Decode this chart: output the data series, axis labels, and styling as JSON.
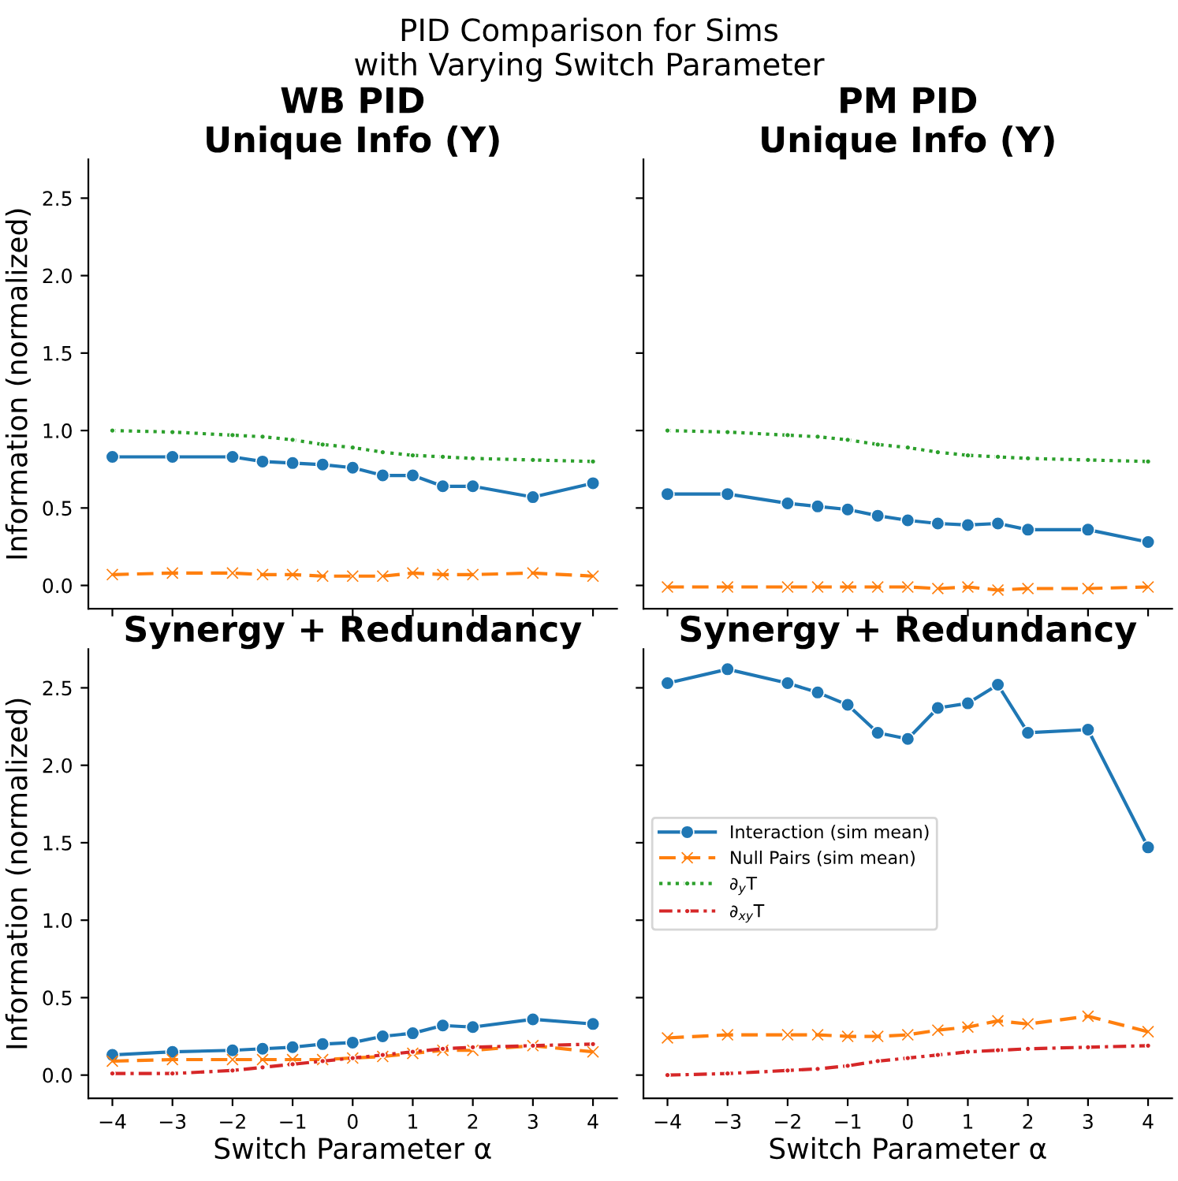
{
  "chart_data": [
    {
      "type": "line",
      "title": "WB PID\nUnique Info (Y)",
      "annotations": [
        "PID Comparison for Sims\nwith Varying Switch Parameter"
      ],
      "ylabel": "Information (normalized)",
      "x": [
        -4,
        -3,
        -2,
        -1.5,
        -1,
        -0.5,
        0,
        0.5,
        1,
        1.5,
        2,
        3,
        4
      ],
      "xlim": [
        -4.4,
        4.4
      ],
      "xticks": [
        -4,
        -3,
        -2,
        -1,
        0,
        1,
        2,
        3,
        4
      ],
      "ylim": [
        -0.15,
        2.75
      ],
      "yticks": [
        {
          "value": 0,
          "label": "0.0"
        },
        0.5,
        {
          "value": 1,
          "label": "1.0"
        },
        1.5,
        {
          "value": 2,
          "label": "2.0"
        },
        2.5
      ],
      "tick_labels": "y",
      "grid": false,
      "legend": false,
      "series": [
        {
          "color": "#1f77b4",
          "marker": "circle",
          "line_style": "solid",
          "values": [
            0.83,
            0.83,
            0.83,
            0.8,
            0.79,
            0.78,
            0.76,
            0.71,
            0.71,
            0.64,
            0.64,
            0.57,
            0.66
          ]
        },
        {
          "color": "#ff7f0e",
          "marker": "cross",
          "line_style": "dashed",
          "values": [
            0.07,
            0.08,
            0.08,
            0.07,
            0.07,
            0.06,
            0.06,
            0.06,
            0.08,
            0.07,
            0.07,
            0.08,
            0.06
          ]
        },
        {
          "color": "#2ca02c",
          "marker": "circle",
          "line_style": "dotted",
          "values": [
            1.0,
            0.99,
            0.97,
            0.96,
            0.94,
            0.91,
            0.89,
            0.86,
            0.84,
            0.83,
            0.82,
            0.81,
            0.8
          ]
        }
      ]
    },
    {
      "type": "line",
      "title": "PM PID\nUnique Info (Y)",
      "x": [
        -4,
        -3,
        -2,
        -1.5,
        -1,
        -0.5,
        0,
        0.5,
        1,
        1.5,
        2,
        3,
        4
      ],
      "xlim": [
        -4.4,
        4.4
      ],
      "xticks": [
        -4,
        -3,
        -2,
        -1,
        0,
        1,
        2,
        3,
        4
      ],
      "ylim": [
        -0.15,
        2.75
      ],
      "yticks": [
        0,
        0.5,
        1,
        1.5,
        2,
        2.5
      ],
      "tick_labels": false,
      "grid": false,
      "legend": false,
      "series": [
        {
          "color": "#1f77b4",
          "marker": "circle",
          "line_style": "solid",
          "values": [
            0.59,
            0.59,
            0.53,
            0.51,
            0.49,
            0.45,
            0.42,
            0.4,
            0.39,
            0.4,
            0.36,
            0.36,
            0.28
          ]
        },
        {
          "color": "#ff7f0e",
          "marker": "cross",
          "line_style": "dashed",
          "values": [
            -0.01,
            -0.01,
            -0.01,
            -0.01,
            -0.01,
            -0.01,
            -0.01,
            -0.02,
            -0.01,
            -0.03,
            -0.02,
            -0.02,
            -0.01
          ]
        },
        {
          "color": "#2ca02c",
          "marker": "circle",
          "line_style": "dotted",
          "values": [
            1.0,
            0.99,
            0.97,
            0.96,
            0.94,
            0.91,
            0.89,
            0.86,
            0.84,
            0.83,
            0.82,
            0.81,
            0.8
          ]
        }
      ]
    },
    {
      "type": "line",
      "title": "Synergy + Redundancy",
      "xlabel": "Switch Parameter α",
      "ylabel": "Information (normalized)",
      "x": [
        -4,
        -3,
        -2,
        -1.5,
        -1,
        -0.5,
        0,
        0.5,
        1,
        1.5,
        2,
        3,
        4
      ],
      "xlim": [
        -4.4,
        4.4
      ],
      "xticks": [
        {
          "value": -4,
          "label": "−4"
        },
        {
          "value": -3,
          "label": "−3"
        },
        {
          "value": -2,
          "label": "−2"
        },
        {
          "value": -1,
          "label": "−1"
        },
        0,
        1,
        2,
        3,
        4
      ],
      "ylim": [
        -0.15,
        2.75
      ],
      "yticks": [
        {
          "value": 0,
          "label": "0.0"
        },
        0.5,
        {
          "value": 1,
          "label": "1.0"
        },
        1.5,
        {
          "value": 2,
          "label": "2.0"
        },
        2.5
      ],
      "grid": false,
      "legend": false,
      "series": [
        {
          "color": "#1f77b4",
          "marker": "circle",
          "line_style": "solid",
          "values": [
            0.13,
            0.15,
            0.16,
            0.17,
            0.18,
            0.2,
            0.21,
            0.25,
            0.27,
            0.32,
            0.31,
            0.36,
            0.33
          ]
        },
        {
          "color": "#ff7f0e",
          "marker": "cross",
          "line_style": "dashed",
          "values": [
            0.09,
            0.1,
            0.1,
            0.1,
            0.1,
            0.1,
            0.11,
            0.12,
            0.14,
            0.16,
            0.16,
            0.19,
            0.15
          ]
        },
        {
          "color": "#d62728",
          "marker": "circle",
          "line_style": "dashdot",
          "values": [
            0.01,
            0.01,
            0.03,
            0.05,
            0.07,
            0.09,
            0.11,
            0.13,
            0.15,
            0.17,
            0.18,
            0.19,
            0.2
          ]
        }
      ]
    },
    {
      "type": "line",
      "title": "Synergy + Redundancy",
      "xlabel": "Switch Parameter α",
      "x": [
        -4,
        -3,
        -2,
        -1.5,
        -1,
        -0.5,
        0,
        0.5,
        1,
        1.5,
        2,
        3,
        4
      ],
      "xlim": [
        -4.4,
        4.4
      ],
      "xticks": [
        {
          "value": -4,
          "label": "−4"
        },
        {
          "value": -3,
          "label": "−3"
        },
        {
          "value": -2,
          "label": "−2"
        },
        {
          "value": -1,
          "label": "−1"
        },
        0,
        1,
        2,
        3,
        4
      ],
      "ylim": [
        -0.15,
        2.75
      ],
      "yticks": [
        0,
        0.5,
        1,
        1.5,
        2,
        2.5
      ],
      "tick_labels": "x",
      "grid": false,
      "legend": "center left",
      "series": [
        {
          "name": "Interaction (sim mean)",
          "color": "#1f77b4",
          "marker": "circle",
          "line_style": "solid",
          "values": [
            2.53,
            2.62,
            2.53,
            2.47,
            2.39,
            2.21,
            2.17,
            2.37,
            2.4,
            2.52,
            2.21,
            2.23,
            1.47
          ]
        },
        {
          "name": "Null Pairs (sim mean)",
          "color": "#ff7f0e",
          "marker": "cross",
          "line_style": "dashed",
          "values": [
            0.24,
            0.26,
            0.26,
            0.26,
            0.25,
            0.25,
            0.26,
            0.29,
            0.31,
            0.35,
            0.33,
            0.38,
            0.28
          ]
        },
        {
          "name": "∂$_{y}$T",
          "color": "#2ca02c",
          "marker": "circle",
          "line_style": "dotted",
          "values": [
            null,
            null,
            null,
            null,
            null,
            null,
            null,
            null,
            null,
            null,
            null,
            null,
            null
          ]
        },
        {
          "name": "∂$_{xy}$T",
          "color": "#d62728",
          "marker": "circle",
          "line_style": "dashdot",
          "values": [
            0.0,
            0.01,
            0.03,
            0.04,
            0.06,
            0.09,
            0.11,
            0.13,
            0.15,
            0.16,
            0.17,
            0.18,
            0.19
          ]
        }
      ]
    }
  ]
}
